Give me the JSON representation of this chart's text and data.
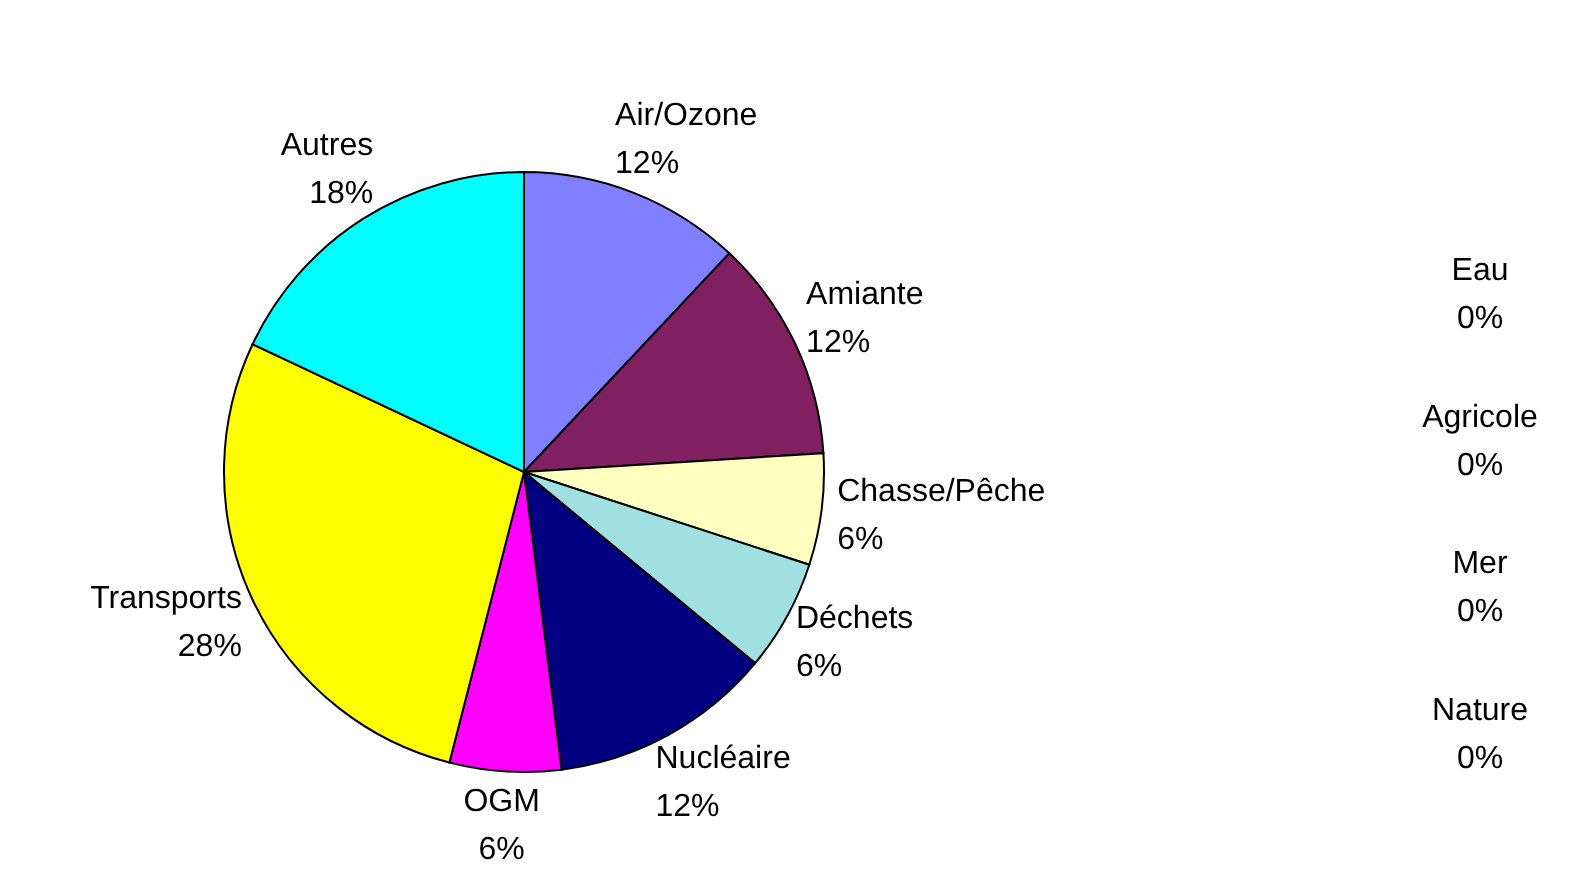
{
  "chart_data": {
    "type": "pie",
    "categories": [
      "Air/Ozone",
      "Amiante",
      "Chasse/Pêche",
      "Déchets",
      "Nucléaire",
      "OGM",
      "Transports",
      "Autres",
      "Eau",
      "Agricole",
      "Mer",
      "Nature"
    ],
    "values": [
      12,
      12,
      6,
      6,
      12,
      6,
      28,
      18,
      0,
      0,
      0,
      0
    ],
    "value_labels": [
      "12%",
      "12%",
      "6%",
      "6%",
      "12%",
      "6%",
      "28%",
      "18%",
      "0%",
      "0%",
      "0%",
      "0%"
    ],
    "colors": [
      "#8080ff",
      "#802060",
      "#ffffc0",
      "#a0e0e0",
      "#000080",
      "#ff00ff",
      "#ffff00",
      "#00ffff",
      "#c0c0c0",
      "#c0c0c0",
      "#c0c0c0",
      "#c0c0c0"
    ]
  }
}
